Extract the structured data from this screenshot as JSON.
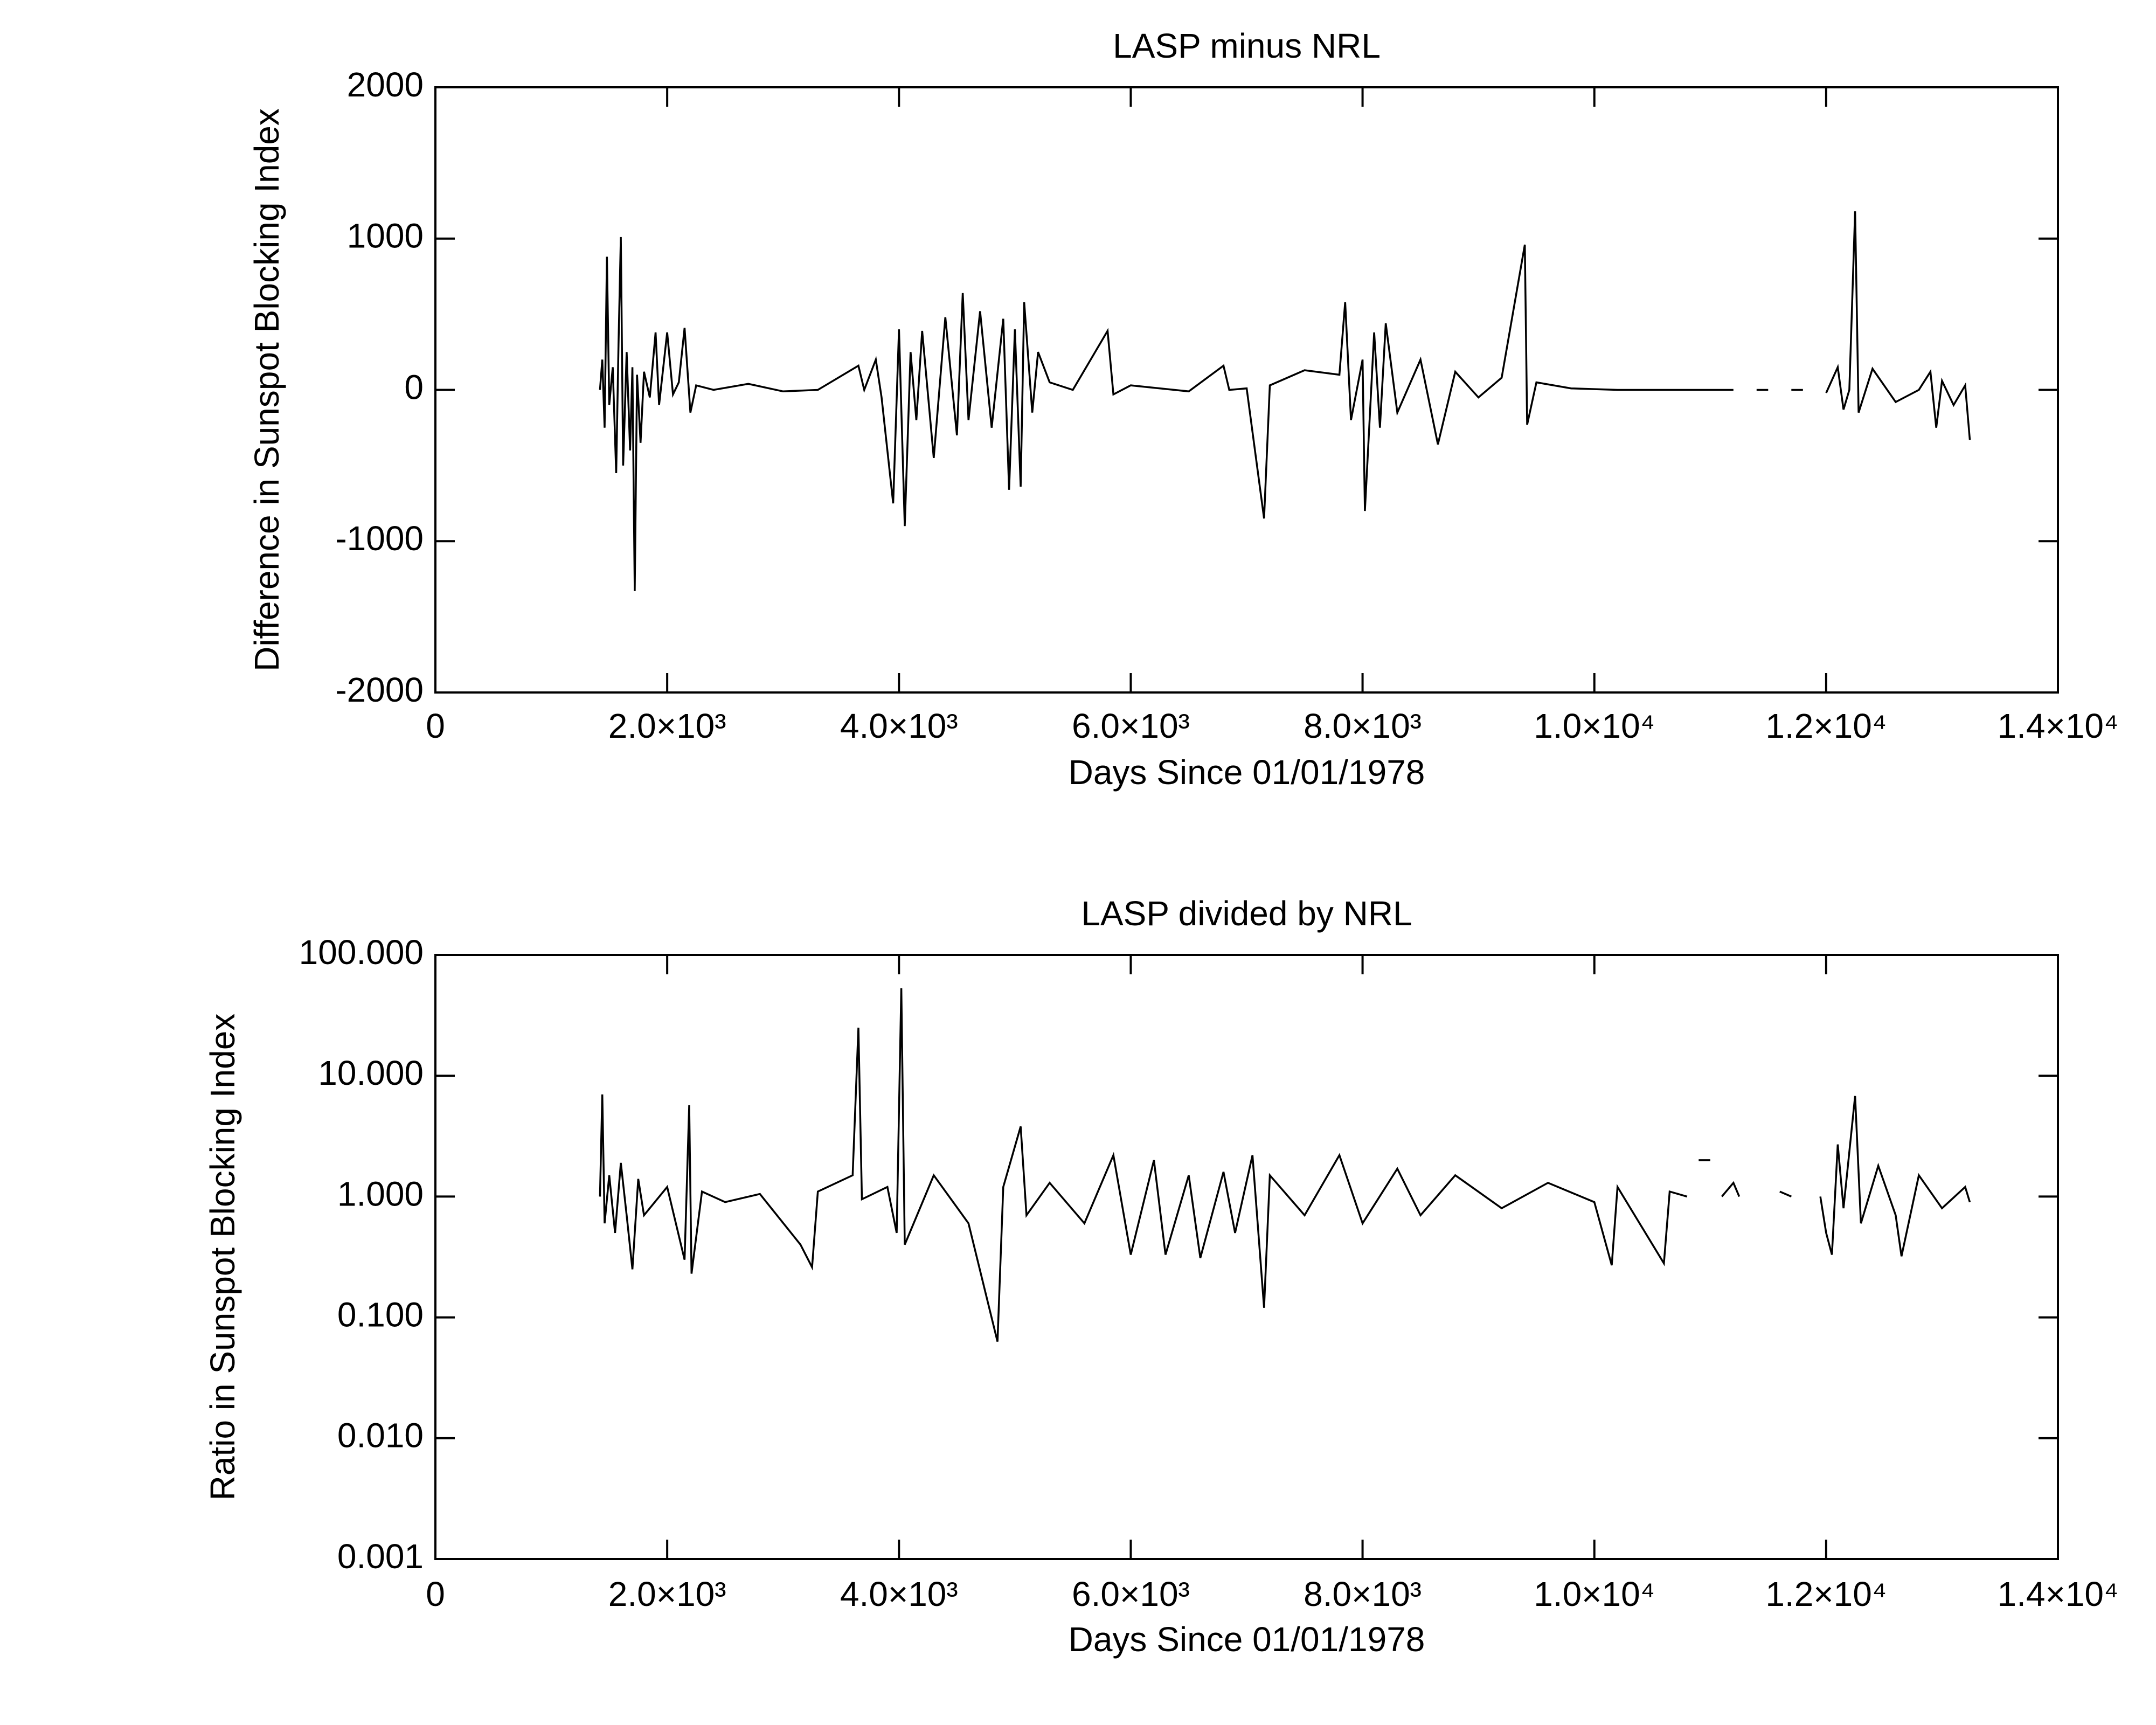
{
  "chart_data": [
    {
      "type": "line",
      "title": "LASP minus NRL",
      "xlabel": "Days Since 01/01/1978",
      "ylabel": "Difference in Sunspot Blocking Index",
      "xlim": [
        0,
        14000
      ],
      "ylim": [
        -2000,
        2000
      ],
      "log": false,
      "xticks": [
        0,
        {
          "value": 2000,
          "label": "2.0×10³"
        },
        {
          "value": 4000,
          "label": "4.0×10³"
        },
        {
          "value": 6000,
          "label": "6.0×10³"
        },
        {
          "value": 8000,
          "label": "8.0×10³"
        },
        {
          "value": 10000,
          "label": "1.0×10⁴"
        },
        {
          "value": 12000,
          "label": "1.2×10⁴"
        },
        {
          "value": 14000,
          "label": "1.4×10⁴"
        }
      ],
      "yticks": [
        -2000,
        -1000,
        0,
        1000,
        2000
      ],
      "series": [
        {
          "color": "#000000",
          "x": [
            1420,
            1440,
            1460,
            1480,
            1500,
            1530,
            1560,
            1580,
            1600,
            1620,
            1650,
            1680,
            1700,
            1720,
            1740,
            1770,
            1800,
            1850,
            1900,
            1930,
            2000,
            2050,
            2100,
            2150,
            2200,
            2250,
            2400,
            2700,
            3000,
            3300,
            3650,
            3700,
            3800,
            3850,
            3950,
            4000,
            4050,
            4100,
            4150,
            4200,
            4300,
            4400,
            4500,
            4550,
            4600,
            4700,
            4800,
            4900,
            4950,
            5000,
            5050,
            5080,
            5150,
            5200,
            5300,
            5500,
            5800,
            5850,
            6000,
            6500,
            6800,
            6850,
            7000,
            7150,
            7200,
            7500,
            7800,
            7850,
            7900,
            8000,
            8020,
            8100,
            8150,
            8200,
            8300,
            8500,
            8650,
            8800,
            9000,
            9200,
            9400,
            9420,
            9500,
            9800,
            10200,
            10600,
            11000,
            11200,
            null,
            11400,
            11500,
            null,
            11700,
            11800,
            null,
            12000,
            12100,
            12150,
            12200,
            12250,
            12280,
            12400,
            12600,
            12800,
            12900,
            12950,
            13000,
            13100,
            13200,
            13240
          ],
          "values": [
            0,
            200,
            -250,
            880,
            -100,
            150,
            -550,
            300,
            1010,
            -500,
            250,
            -400,
            150,
            -1330,
            100,
            -350,
            120,
            -50,
            380,
            -100,
            380,
            -30,
            50,
            410,
            -150,
            30,
            0,
            40,
            -10,
            0,
            160,
            0,
            200,
            -50,
            -750,
            400,
            -900,
            250,
            -200,
            390,
            -450,
            480,
            -300,
            640,
            -200,
            520,
            -250,
            470,
            -660,
            400,
            -640,
            580,
            -150,
            250,
            50,
            0,
            390,
            -30,
            30,
            -10,
            160,
            0,
            10,
            -850,
            30,
            130,
            100,
            580,
            -200,
            200,
            -800,
            380,
            -250,
            440,
            -150,
            200,
            -360,
            120,
            -50,
            80,
            960,
            -230,
            50,
            10,
            0,
            0,
            0,
            0,
            null,
            0,
            0,
            null,
            0,
            0,
            null,
            -20,
            150,
            -130,
            0,
            1180,
            -150,
            140,
            -80,
            0,
            120,
            -250,
            60,
            -100,
            30,
            -330
          ]
        }
      ]
    },
    {
      "type": "line",
      "title": "LASP divided by NRL",
      "xlabel": "Days Since 01/01/1978",
      "ylabel": "Ratio in Sunspot Blocking Index",
      "xlim": [
        0,
        14000
      ],
      "ylim": [
        0.001,
        100
      ],
      "log": true,
      "xticks": [
        0,
        {
          "value": 2000,
          "label": "2.0×10³"
        },
        {
          "value": 4000,
          "label": "4.0×10³"
        },
        {
          "value": 6000,
          "label": "6.0×10³"
        },
        {
          "value": 8000,
          "label": "8.0×10³"
        },
        {
          "value": 10000,
          "label": "1.0×10⁴"
        },
        {
          "value": 12000,
          "label": "1.2×10⁴"
        },
        {
          "value": 14000,
          "label": "1.4×10⁴"
        }
      ],
      "yticks": [
        0.001,
        {
          "value": 0.01,
          "label": "0.010"
        },
        {
          "value": 0.1,
          "label": "0.100"
        },
        {
          "value": 1,
          "label": "1.000"
        },
        {
          "value": 10,
          "label": "10.000"
        },
        {
          "value": 100,
          "label": "100.000"
        }
      ],
      "series": [
        {
          "color": "#000000",
          "x": [
            1420,
            1440,
            1460,
            1500,
            1550,
            1600,
            1650,
            1700,
            1750,
            1800,
            2000,
            2150,
            2190,
            2210,
            2300,
            2500,
            2800,
            3150,
            3250,
            3300,
            3600,
            3650,
            3680,
            3900,
            3980,
            4020,
            4050,
            4300,
            4600,
            4850,
            4900,
            5050,
            5100,
            5300,
            5600,
            5850,
            6000,
            6200,
            6300,
            6500,
            6600,
            6800,
            6900,
            7050,
            7150,
            7200,
            7500,
            7800,
            8000,
            8300,
            8500,
            8800,
            9200,
            9600,
            10000,
            10150,
            10200,
            10600,
            10650,
            10800,
            null,
            10900,
            11000,
            null,
            11100,
            11200,
            11250,
            null,
            11600,
            11700,
            null,
            11950,
            12000,
            12050,
            12100,
            12150,
            12250,
            12300,
            12450,
            12600,
            12650,
            12800,
            13000,
            13200,
            13240
          ],
          "values": [
            1,
            7,
            0.6,
            1.5,
            0.5,
            1.9,
            0.7,
            0.25,
            1.4,
            0.7,
            1.2,
            0.3,
            5.7,
            0.23,
            1.1,
            0.9,
            1.05,
            0.4,
            0.26,
            1.1,
            1.5,
            25,
            0.95,
            1.2,
            0.5,
            53,
            0.4,
            1.5,
            0.6,
            0.063,
            1.2,
            3.8,
            0.7,
            1.3,
            0.6,
            2.2,
            0.33,
            2,
            0.33,
            1.5,
            0.31,
            1.6,
            0.5,
            2.2,
            0.12,
            1.5,
            0.7,
            2.2,
            0.6,
            1.7,
            0.7,
            1.5,
            0.8,
            1.3,
            0.9,
            0.27,
            1.2,
            0.28,
            1.1,
            1,
            null,
            2,
            2,
            null,
            1,
            1.3,
            1,
            null,
            1.1,
            1,
            null,
            1,
            0.5,
            0.33,
            2.7,
            0.8,
            6.8,
            0.6,
            1.8,
            0.7,
            0.32,
            1.5,
            0.8,
            1.2,
            0.9
          ]
        }
      ]
    }
  ]
}
